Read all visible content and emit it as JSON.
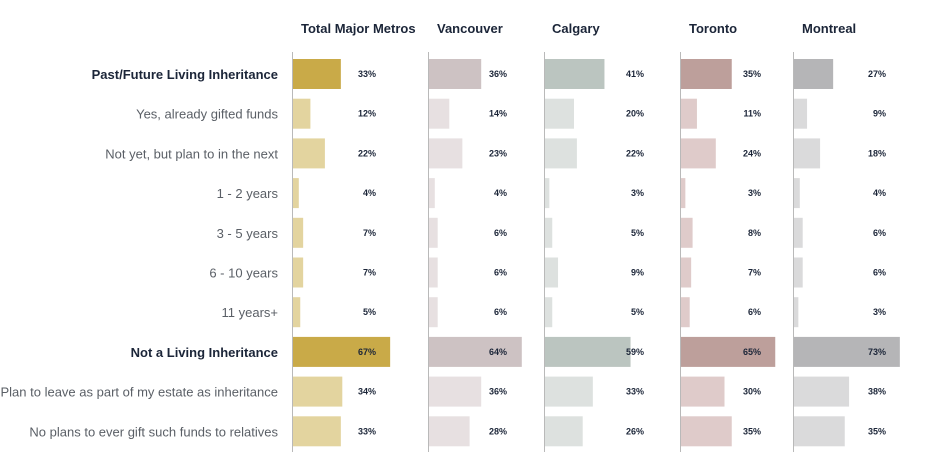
{
  "chart_data": {
    "type": "bar",
    "title": "",
    "xlabel": "",
    "ylabel": "",
    "xlim": [
      0,
      100
    ],
    "categories": [
      "Past/Future Living Inheritance",
      "Yes, already gifted funds",
      "Not yet, but plan to in the next",
      "1 - 2 years",
      "3 - 5 years",
      "6 - 10 years",
      "11 years+",
      "Not a Living Inheritance",
      "Plan to leave as part of my estate as inheritance",
      "No plans to ever gift such funds to relatives"
    ],
    "bold_rows": [
      0,
      7
    ],
    "series": [
      {
        "name": "Total Major Metros",
        "values": [
          33,
          12,
          22,
          4,
          7,
          7,
          5,
          67,
          34,
          33
        ],
        "labels": [
          "33%",
          "12%",
          "22%",
          "4%",
          "7%",
          "7%",
          "5%",
          "67%",
          "34%",
          "33%"
        ],
        "color_main": "#c9aa48",
        "color_sub": "#e3d49f"
      },
      {
        "name": "Vancouver",
        "values": [
          36,
          14,
          23,
          4,
          6,
          6,
          6,
          64,
          36,
          28
        ],
        "labels": [
          "36%",
          "14%",
          "23%",
          "4%",
          "6%",
          "6%",
          "6%",
          "64%",
          "36%",
          "28%"
        ],
        "color_main": "#cdc2c3",
        "color_sub": "#e7e0e1"
      },
      {
        "name": "Calgary",
        "values": [
          41,
          20,
          22,
          3,
          5,
          9,
          5,
          59,
          33,
          26
        ],
        "labels": [
          "41%",
          "20%",
          "22%",
          "3%",
          "5%",
          "9%",
          "5%",
          "59%",
          "33%",
          "26%"
        ],
        "color_main": "#bbc5c0",
        "color_sub": "#dde1df"
      },
      {
        "name": "Toronto",
        "values": [
          35,
          11,
          24,
          3,
          8,
          7,
          6,
          65,
          30,
          35
        ],
        "labels": [
          "35%",
          "11%",
          "24%",
          "3%",
          "8%",
          "7%",
          "6%",
          "65%",
          "30%",
          "35%"
        ],
        "color_main": "#bd9f9b",
        "color_sub": "#dfcbca"
      },
      {
        "name": "Montreal",
        "values": [
          27,
          9,
          18,
          4,
          6,
          6,
          3,
          73,
          38,
          35
        ],
        "labels": [
          "27%",
          "9%",
          "18%",
          "4%",
          "6%",
          "6%",
          "3%",
          "73%",
          "38%",
          "35%"
        ],
        "color_main": "#b5b5b7",
        "color_sub": "#dadadb"
      }
    ]
  }
}
